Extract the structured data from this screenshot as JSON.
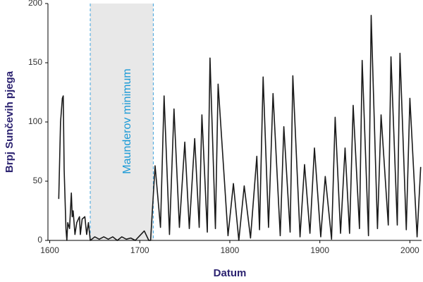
{
  "chart_data": {
    "type": "line",
    "xlabel": "Datum",
    "ylabel": "Brpj Sunčevih pjega",
    "x": [
      1610,
      1612,
      1614,
      1615,
      1616,
      1618,
      1619,
      1620,
      1622,
      1624,
      1625,
      1626,
      1628,
      1630,
      1633,
      1634,
      1636,
      1639,
      1641,
      1643,
      1645,
      1650,
      1655,
      1660,
      1665,
      1670,
      1675,
      1680,
      1685,
      1690,
      1695,
      1700,
      1705,
      1710,
      1712,
      1717,
      1723,
      1727,
      1733,
      1738,
      1744,
      1750,
      1755,
      1761,
      1766,
      1769,
      1775,
      1778,
      1784,
      1787,
      1798,
      1804,
      1810,
      1816,
      1823,
      1830,
      1833,
      1837,
      1843,
      1848,
      1856,
      1860,
      1867,
      1870,
      1878,
      1883,
      1889,
      1894,
      1901,
      1906,
      1913,
      1917,
      1923,
      1928,
      1933,
      1937,
      1944,
      1947,
      1954,
      1957,
      1964,
      1968,
      1976,
      1979,
      1986,
      1989,
      1996,
      2000,
      2008,
      2012
    ],
    "values": [
      35,
      100,
      120,
      122,
      60,
      10,
      0,
      15,
      10,
      40,
      20,
      25,
      5,
      15,
      20,
      5,
      18,
      20,
      5,
      15,
      0,
      3,
      1,
      3,
      1,
      3,
      0,
      3,
      1,
      2,
      0,
      4,
      8,
      0,
      0,
      63,
      11,
      122,
      5,
      111,
      11,
      83,
      10,
      86,
      11,
      106,
      7,
      154,
      10,
      132,
      4,
      48,
      0,
      46,
      2,
      71,
      9,
      138,
      11,
      124,
      4,
      96,
      7,
      139,
      3,
      64,
      6,
      78,
      3,
      54,
      1,
      104,
      6,
      78,
      6,
      114,
      10,
      152,
      4,
      190,
      10,
      106,
      13,
      155,
      13,
      158,
      9,
      120,
      3,
      62
    ],
    "color": "#1a1a1a",
    "xlim": [
      1598,
      2013
    ],
    "xticks": [
      1600,
      1700,
      1800,
      1900,
      2000
    ],
    "ylim": [
      0,
      200
    ],
    "yticks": [
      0,
      50,
      100,
      150,
      200
    ],
    "grid": false,
    "shade": {
      "x": [
        1645,
        1715
      ],
      "label": "Maunderov minimum",
      "color": "#e8e8e8",
      "line_color": "#3fa3dd",
      "label_color": "#1b9ad6"
    }
  }
}
